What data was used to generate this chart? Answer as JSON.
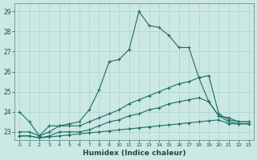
{
  "xlabel": "Humidex (Indice chaleur)",
  "background_color": "#cce8e4",
  "grid_color": "#a8d4cc",
  "line_color": "#1a6e62",
  "xlim": [
    -0.5,
    23.5
  ],
  "ylim": [
    22.6,
    29.4
  ],
  "xticks": [
    0,
    1,
    2,
    3,
    4,
    5,
    6,
    7,
    8,
    9,
    10,
    11,
    12,
    13,
    14,
    15,
    16,
    17,
    18,
    19,
    20,
    21,
    22,
    23
  ],
  "yticks": [
    23,
    24,
    25,
    26,
    27,
    28,
    29
  ],
  "lines": [
    {
      "x": [
        0,
        1,
        2,
        3,
        4,
        5,
        6,
        7,
        8,
        9,
        10,
        11,
        12,
        13,
        14,
        15,
        16,
        17,
        18,
        19,
        20,
        21,
        22,
        23
      ],
      "y": [
        24.0,
        23.5,
        22.8,
        23.3,
        23.3,
        23.4,
        23.5,
        24.1,
        25.1,
        26.5,
        26.6,
        27.1,
        29.0,
        28.3,
        28.2,
        27.8,
        27.2,
        27.2,
        25.7,
        24.5,
        23.8,
        23.7,
        23.5,
        23.5
      ]
    },
    {
      "x": [
        0,
        1,
        2,
        3,
        4,
        5,
        6,
        7,
        8,
        9,
        10,
        11,
        12,
        13,
        14,
        15,
        16,
        17,
        18,
        19,
        20,
        21,
        22,
        23
      ],
      "y": [
        23.0,
        23.0,
        22.8,
        23.0,
        23.3,
        23.3,
        23.3,
        23.5,
        23.7,
        23.9,
        24.1,
        24.4,
        24.6,
        24.8,
        25.0,
        25.2,
        25.4,
        25.5,
        25.7,
        25.8,
        23.9,
        23.6,
        23.5,
        23.5
      ]
    },
    {
      "x": [
        0,
        1,
        2,
        3,
        4,
        5,
        6,
        7,
        8,
        9,
        10,
        11,
        12,
        13,
        14,
        15,
        16,
        17,
        18,
        19,
        20,
        21,
        22,
        23
      ],
      "y": [
        22.8,
        22.8,
        22.7,
        22.8,
        23.0,
        23.0,
        23.0,
        23.1,
        23.3,
        23.5,
        23.6,
        23.8,
        23.9,
        24.1,
        24.2,
        24.4,
        24.5,
        24.6,
        24.7,
        24.5,
        23.8,
        23.5,
        23.4,
        23.4
      ]
    },
    {
      "x": [
        0,
        1,
        2,
        3,
        4,
        5,
        6,
        7,
        8,
        9,
        10,
        11,
        12,
        13,
        14,
        15,
        16,
        17,
        18,
        19,
        20,
        21,
        22,
        23
      ],
      "y": [
        22.8,
        22.8,
        22.7,
        22.75,
        22.8,
        22.85,
        22.9,
        22.95,
        23.0,
        23.05,
        23.1,
        23.15,
        23.2,
        23.25,
        23.3,
        23.35,
        23.4,
        23.45,
        23.5,
        23.55,
        23.6,
        23.4,
        23.4,
        23.4
      ]
    }
  ],
  "marker": "+",
  "marker_size": 3,
  "linewidth": 0.8
}
